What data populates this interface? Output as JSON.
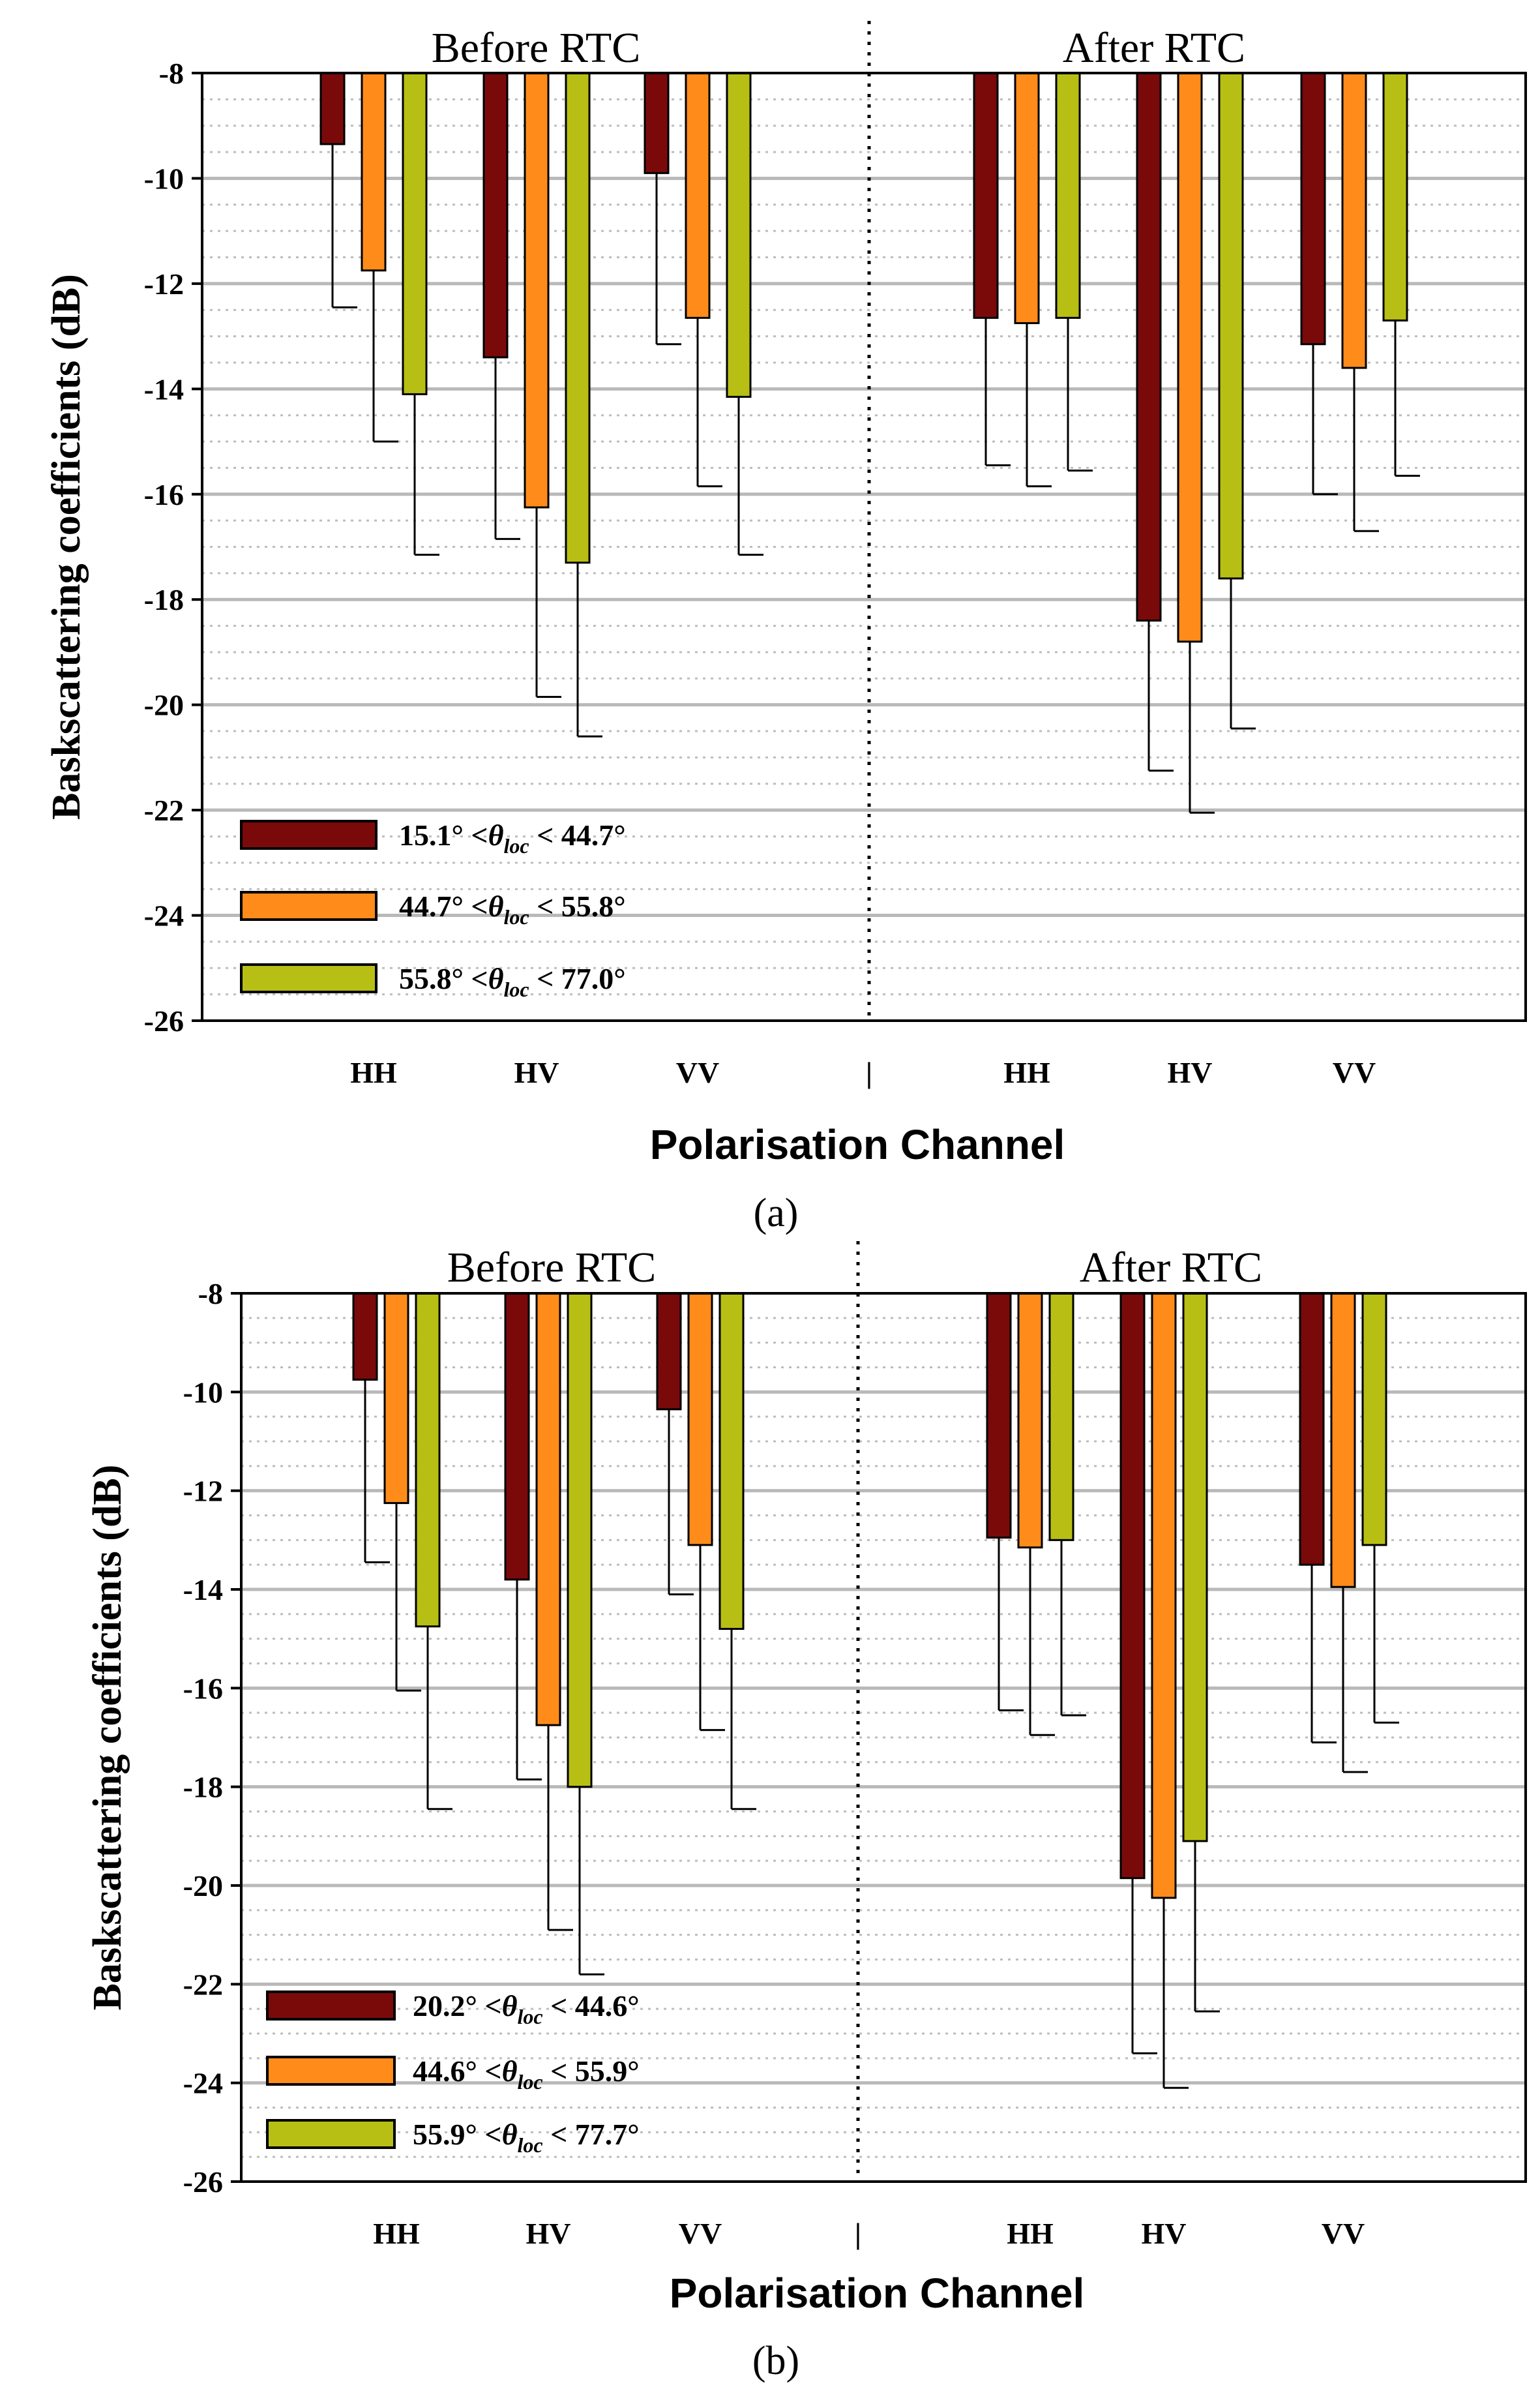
{
  "colors": {
    "series1": "#7a0a0a",
    "series2": "#ff8c1a",
    "series3": "#b8bf14",
    "major_grid": "#b9b9b9",
    "minor_grid": "#bdbdbd",
    "frame": "#000000"
  },
  "chart_data": [
    {
      "type": "bar",
      "panel_label": "(a)",
      "ylabel": "Baskscattering coefficients (dB)",
      "xlabel": "Polarisation Channel",
      "ylim": [
        -26,
        -8
      ],
      "yticks": [
        -8,
        -10,
        -12,
        -14,
        -16,
        -18,
        -20,
        -22,
        -24,
        -26
      ],
      "ytick_labels": [
        "-8",
        "-10",
        "-12",
        "-14",
        "-16",
        "-18",
        "-20",
        "-22",
        "-24",
        "-26"
      ],
      "sections": [
        "Before RTC",
        "After RTC"
      ],
      "divider_label": "|",
      "categories": [
        "HH",
        "HV",
        "VV",
        "HH",
        "HV",
        "VV"
      ],
      "legend": [
        {
          "lo": "15.1°",
          "theta": "θ",
          "sub": "loc",
          "hi": "< 44.7°"
        },
        {
          "lo": "44.7°",
          "theta": "θ",
          "sub": "loc",
          "hi": "< 55.8°"
        },
        {
          "lo": "55.8°",
          "theta": "θ",
          "sub": "loc",
          "hi": "< 77.0°"
        }
      ],
      "series": [
        {
          "name": "15.1° < θloc < 44.7°",
          "values": [
            -9.35,
            -13.4,
            -9.9,
            -12.65,
            -18.4,
            -13.15
          ],
          "errors": [
            3.1,
            3.45,
            3.25,
            2.8,
            2.85,
            2.85
          ]
        },
        {
          "name": "44.7° < θloc < 55.8°",
          "values": [
            -11.75,
            -16.25,
            -12.65,
            -12.75,
            -18.8,
            -13.6
          ],
          "errors": [
            3.25,
            3.6,
            3.2,
            3.1,
            3.25,
            3.1
          ]
        },
        {
          "name": "55.8° < θloc < 77.0°",
          "values": [
            -14.1,
            -17.3,
            -14.15,
            -12.65,
            -17.6,
            -12.7
          ],
          "errors": [
            3.05,
            3.3,
            3.0,
            2.9,
            2.85,
            2.95
          ]
        }
      ]
    },
    {
      "type": "bar",
      "panel_label": "(b)",
      "ylabel": "Baskscattering coefficients (dB)",
      "xlabel": "Polarisation Channel",
      "ylim": [
        -26,
        -8
      ],
      "yticks": [
        -8,
        -10,
        -12,
        -14,
        -16,
        -18,
        -20,
        -22,
        -24,
        -26
      ],
      "ytick_labels": [
        "-8",
        "-10",
        "-12",
        "-14",
        "-16",
        "-18",
        "-20",
        "-22",
        "-24",
        "-26"
      ],
      "sections": [
        "Before RTC",
        "After RTC"
      ],
      "divider_label": "|",
      "categories": [
        "HH",
        "HV",
        "VV",
        "HH",
        "HV",
        "VV"
      ],
      "legend": [
        {
          "lo": "20.2°",
          "theta": "θ",
          "sub": "loc",
          "hi": "< 44.6°"
        },
        {
          "lo": "44.6°",
          "theta": "θ",
          "sub": "loc",
          "hi": "< 55.9°"
        },
        {
          "lo": "55.9°",
          "theta": "θ",
          "sub": "loc",
          "hi": "< 77.7°"
        }
      ],
      "series": [
        {
          "name": "20.2° < θloc < 44.6°",
          "values": [
            -9.75,
            -13.8,
            -10.35,
            -12.95,
            -19.85,
            -13.5
          ],
          "errors": [
            3.7,
            4.05,
            3.75,
            3.5,
            3.55,
            3.6
          ]
        },
        {
          "name": "44.6° < θloc < 55.9°",
          "values": [
            -12.25,
            -16.75,
            -13.1,
            -13.15,
            -20.25,
            -13.95
          ],
          "errors": [
            3.8,
            4.15,
            3.75,
            3.8,
            3.85,
            3.75
          ]
        },
        {
          "name": "55.9° < θloc < 77.7°",
          "values": [
            -14.75,
            -18.0,
            -14.8,
            -13.0,
            -19.1,
            -13.1
          ],
          "errors": [
            3.7,
            3.8,
            3.65,
            3.55,
            3.45,
            3.6
          ]
        }
      ]
    }
  ]
}
